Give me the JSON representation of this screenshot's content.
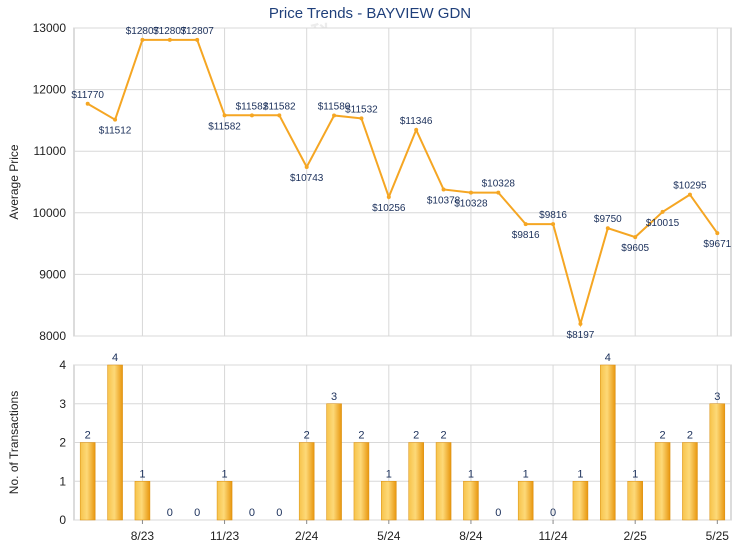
{
  "title": "Price Trends - BAYVIEW GDN",
  "watermark": "科一",
  "colors": {
    "line": "#f5a623",
    "bar": "#f5b21d",
    "text": "#1f3f7a",
    "grid": "#d8d8d8"
  },
  "chart_data": [
    {
      "type": "line",
      "title": "Price Trends - BAYVIEW GDN",
      "ylabel": "Average Price",
      "ylim": [
        8000,
        13000
      ],
      "yticks": [
        "13000",
        "12000",
        "11000",
        "10000",
        "9000",
        "8000"
      ],
      "grid": true,
      "values": [
        11770,
        11512,
        12807,
        12807,
        12807,
        11582,
        11582,
        11582,
        10743,
        11580,
        11532,
        10256,
        11346,
        10378,
        10328,
        10328,
        9816,
        9816,
        8197,
        9750,
        9605,
        10015,
        10295,
        9671
      ],
      "labels": [
        "$11770",
        "$11512",
        "$12807",
        "$12807",
        "$12807",
        "$11582",
        "$11582",
        "$11582",
        "$10743",
        "$11580",
        "$11532",
        "$10256",
        "$11346",
        "$10378",
        "$10328",
        "$10328",
        "$9816",
        "$9816",
        "$8197",
        "$9750",
        "$9605",
        "$10015",
        "$10295",
        "$9671"
      ]
    },
    {
      "type": "bar",
      "ylabel": "No. of Transactions",
      "ylim": [
        0,
        4
      ],
      "yticks": [
        "4",
        "3",
        "2",
        "1",
        "0"
      ],
      "grid": true,
      "values": [
        2,
        4,
        1,
        0,
        0,
        1,
        0,
        0,
        2,
        3,
        2,
        1,
        2,
        2,
        1,
        0,
        1,
        0,
        1,
        4,
        1,
        2,
        2,
        3
      ],
      "labels": [
        "2",
        "4",
        "1",
        "0",
        "0",
        "1",
        "0",
        "0",
        "2",
        "3",
        "2",
        "1",
        "2",
        "2",
        "1",
        "0",
        "1",
        "0",
        "1",
        "4",
        "1",
        "2",
        "2",
        "3"
      ],
      "xticks": [
        "8/23",
        "11/23",
        "2/24",
        "5/24",
        "8/24",
        "11/24",
        "2/25",
        "5/25"
      ]
    }
  ]
}
